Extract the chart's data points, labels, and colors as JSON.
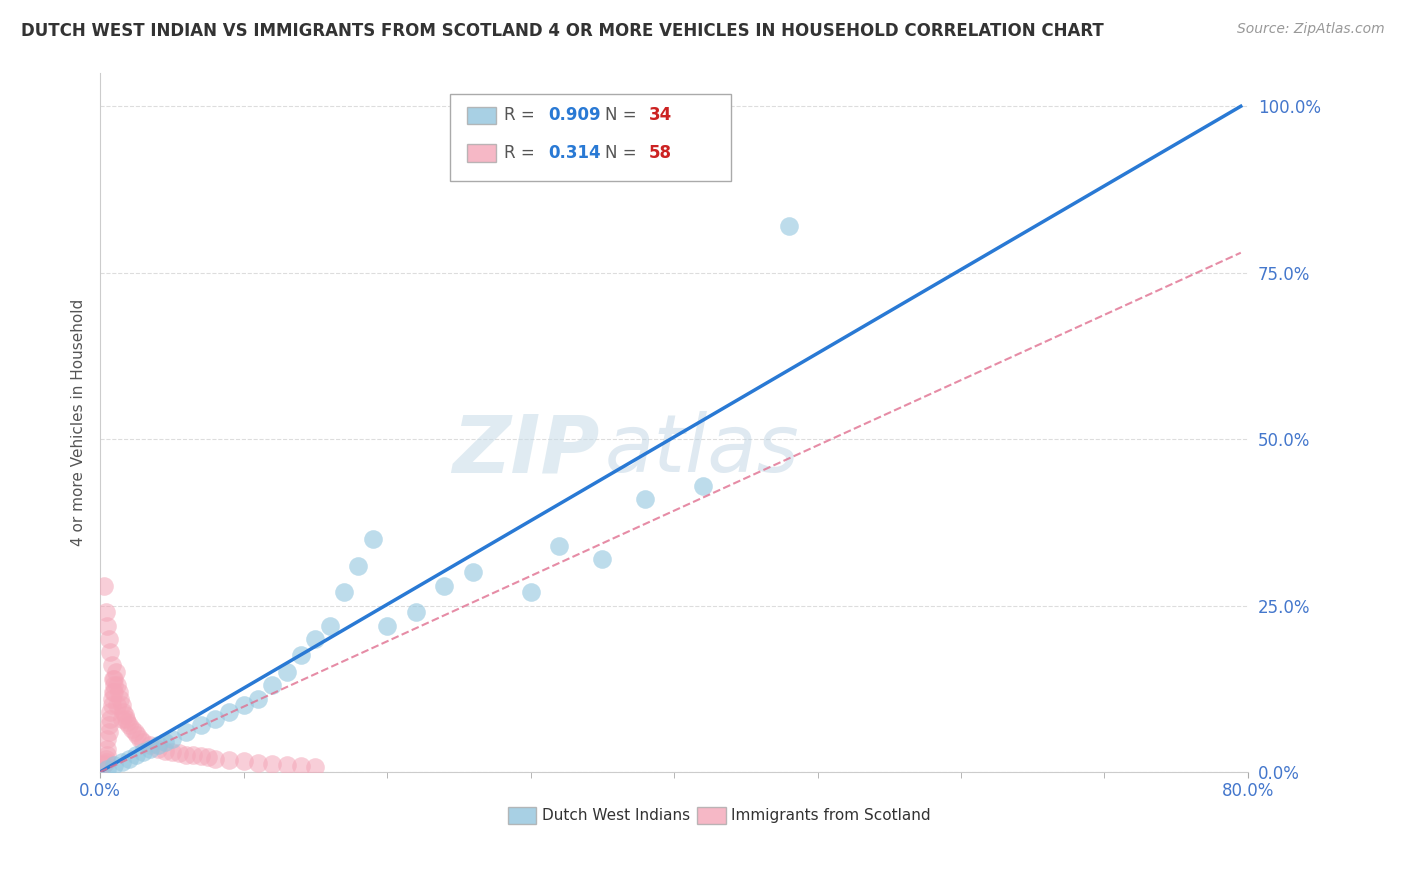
{
  "title": "DUTCH WEST INDIAN VS IMMIGRANTS FROM SCOTLAND 4 OR MORE VEHICLES IN HOUSEHOLD CORRELATION CHART",
  "source": "Source: ZipAtlas.com",
  "ylabel": "4 or more Vehicles in Household",
  "xlim": [
    0.0,
    0.8
  ],
  "ylim": [
    0.0,
    1.05
  ],
  "xtick_positions": [
    0.0,
    0.8
  ],
  "xtick_labels": [
    "0.0%",
    "80.0%"
  ],
  "ytick_positions": [
    0.0,
    0.25,
    0.5,
    0.75,
    1.0
  ],
  "ytick_labels": [
    "0.0%",
    "25.0%",
    "50.0%",
    "75.0%",
    "100.0%"
  ],
  "legend_r1": "0.909",
  "legend_n1": "34",
  "legend_r2": "0.314",
  "legend_n2": "58",
  "color_blue": "#92c5de",
  "color_pink": "#f4a6b8",
  "watermark_zip": "ZIP",
  "watermark_atlas": "atlas",
  "title_fontsize": 12,
  "source_fontsize": 10,
  "blue_scatter_x": [
    0.005,
    0.01,
    0.015,
    0.02,
    0.025,
    0.03,
    0.035,
    0.04,
    0.045,
    0.05,
    0.06,
    0.07,
    0.08,
    0.09,
    0.1,
    0.11,
    0.12,
    0.13,
    0.14,
    0.15,
    0.16,
    0.17,
    0.18,
    0.19,
    0.2,
    0.22,
    0.24,
    0.26,
    0.3,
    0.32,
    0.35,
    0.38,
    0.42,
    0.48
  ],
  "blue_scatter_y": [
    0.005,
    0.01,
    0.015,
    0.02,
    0.025,
    0.03,
    0.035,
    0.04,
    0.045,
    0.05,
    0.06,
    0.07,
    0.08,
    0.09,
    0.1,
    0.11,
    0.13,
    0.15,
    0.175,
    0.2,
    0.22,
    0.27,
    0.31,
    0.35,
    0.22,
    0.24,
    0.28,
    0.3,
    0.27,
    0.34,
    0.32,
    0.41,
    0.43,
    0.82
  ],
  "pink_scatter_x": [
    0.002,
    0.003,
    0.004,
    0.004,
    0.005,
    0.005,
    0.005,
    0.006,
    0.006,
    0.007,
    0.007,
    0.008,
    0.008,
    0.009,
    0.01,
    0.01,
    0.011,
    0.012,
    0.013,
    0.014,
    0.015,
    0.016,
    0.017,
    0.018,
    0.019,
    0.02,
    0.022,
    0.024,
    0.026,
    0.028,
    0.03,
    0.035,
    0.04,
    0.045,
    0.05,
    0.055,
    0.06,
    0.065,
    0.07,
    0.075,
    0.08,
    0.09,
    0.1,
    0.11,
    0.12,
    0.13,
    0.14,
    0.15,
    0.003,
    0.004,
    0.005,
    0.006,
    0.007,
    0.008,
    0.009,
    0.01,
    0.012,
    0.015
  ],
  "pink_scatter_y": [
    0.01,
    0.012,
    0.015,
    0.02,
    0.025,
    0.035,
    0.05,
    0.06,
    0.07,
    0.08,
    0.09,
    0.1,
    0.11,
    0.12,
    0.13,
    0.14,
    0.15,
    0.13,
    0.12,
    0.11,
    0.1,
    0.09,
    0.085,
    0.08,
    0.075,
    0.07,
    0.065,
    0.06,
    0.055,
    0.05,
    0.045,
    0.04,
    0.035,
    0.032,
    0.03,
    0.028,
    0.026,
    0.025,
    0.024,
    0.022,
    0.02,
    0.018,
    0.016,
    0.014,
    0.012,
    0.01,
    0.009,
    0.008,
    0.28,
    0.24,
    0.22,
    0.2,
    0.18,
    0.16,
    0.14,
    0.12,
    0.1,
    0.08
  ],
  "blue_line_x": [
    0.0,
    0.795
  ],
  "blue_line_y": [
    0.0,
    1.0
  ],
  "pink_line_x": [
    0.0,
    0.795
  ],
  "pink_line_y": [
    0.0,
    0.78
  ],
  "grid_color": "#dddddd",
  "tick_color": "#4477cc",
  "ylabel_color": "#555555"
}
